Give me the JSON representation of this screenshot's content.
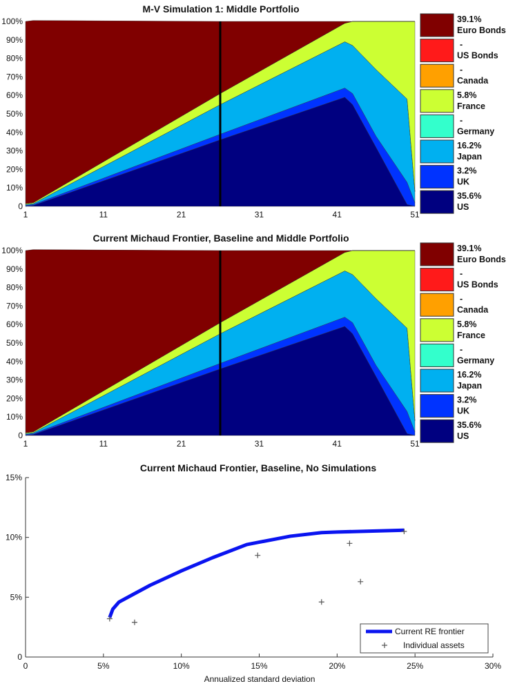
{
  "chart_data": [
    {
      "type": "area",
      "title": "M-V Simulation 1: Middle Portfolio",
      "x": [
        1,
        2,
        26,
        42,
        43,
        46,
        50,
        51
      ],
      "xticks": [
        "1",
        "11",
        "21",
        "31",
        "41",
        "51"
      ],
      "xlim": [
        1,
        51
      ],
      "yticks": [
        "0",
        "10%",
        "20%",
        "30%",
        "40%",
        "50%",
        "60%",
        "70%",
        "80%",
        "90%",
        "100%"
      ],
      "ylim": [
        0,
        100
      ],
      "marker_x": 26,
      "series": [
        {
          "name": "US",
          "value_label": "35.6%",
          "color": "#000080",
          "values": [
            0,
            0.5,
            36,
            59,
            55,
            32,
            1,
            0
          ]
        },
        {
          "name": "UK",
          "value_label": "3.2%",
          "color": "#0033ff",
          "values": [
            0.5,
            0.5,
            3,
            5,
            6,
            6,
            12,
            2
          ]
        },
        {
          "name": "Japan",
          "value_label": "16.2%",
          "color": "#00b0f0",
          "values": [
            0.5,
            0.5,
            16,
            25,
            26,
            36,
            45,
            6
          ]
        },
        {
          "name": "Germany",
          "value_label": "-",
          "color": "#33ffcc",
          "values": [
            0,
            0,
            0,
            0,
            0,
            0,
            0,
            0
          ]
        },
        {
          "name": "France",
          "value_label": "5.8%",
          "color": "#ccff33",
          "values": [
            0.5,
            0.5,
            6,
            10,
            13,
            26,
            42,
            92
          ]
        },
        {
          "name": "Canada",
          "value_label": "-",
          "color": "#ffa000",
          "values": [
            0,
            0,
            0,
            0,
            0,
            0,
            0,
            0
          ]
        },
        {
          "name": "US Bonds",
          "value_label": "-",
          "color": "#ff1a1a",
          "values": [
            0,
            0,
            0,
            0,
            0,
            0,
            0,
            0
          ]
        },
        {
          "name": "Euro Bonds",
          "value_label": "39.1%",
          "color": "#800000",
          "values": [
            98.5,
            98.5,
            39,
            1,
            0,
            0,
            0,
            0
          ]
        }
      ]
    },
    {
      "type": "area",
      "title": "Current Michaud Frontier, Baseline and Middle Portfolio",
      "x": [
        1,
        2,
        26,
        42,
        43,
        46,
        50,
        51
      ],
      "xticks": [
        "1",
        "11",
        "21",
        "31",
        "41",
        "51"
      ],
      "xlim": [
        1,
        51
      ],
      "yticks": [
        "0",
        "10%",
        "20%",
        "30%",
        "40%",
        "50%",
        "60%",
        "70%",
        "80%",
        "90%",
        "100%"
      ],
      "ylim": [
        0,
        100
      ],
      "marker_x": 26,
      "series": [
        {
          "name": "US",
          "value_label": "35.6%",
          "color": "#000080",
          "values": [
            0,
            0.5,
            36,
            59,
            55,
            32,
            1,
            0
          ]
        },
        {
          "name": "UK",
          "value_label": "3.2%",
          "color": "#0033ff",
          "values": [
            0.5,
            0.5,
            3,
            5,
            6,
            6,
            12,
            2
          ]
        },
        {
          "name": "Japan",
          "value_label": "16.2%",
          "color": "#00b0f0",
          "values": [
            0.5,
            0.5,
            16,
            25,
            26,
            36,
            45,
            6
          ]
        },
        {
          "name": "Germany",
          "value_label": "-",
          "color": "#33ffcc",
          "values": [
            0,
            0,
            0,
            0,
            0,
            0,
            0,
            0
          ]
        },
        {
          "name": "France",
          "value_label": "5.8%",
          "color": "#ccff33",
          "values": [
            0.5,
            0.5,
            6,
            10,
            13,
            26,
            42,
            92
          ]
        },
        {
          "name": "Canada",
          "value_label": "-",
          "color": "#ffa000",
          "values": [
            0,
            0,
            0,
            0,
            0,
            0,
            0,
            0
          ]
        },
        {
          "name": "US Bonds",
          "value_label": "-",
          "color": "#ff1a1a",
          "values": [
            0,
            0,
            0,
            0,
            0,
            0,
            0,
            0
          ]
        },
        {
          "name": "Euro Bonds",
          "value_label": "39.1%",
          "color": "#800000",
          "values": [
            98.5,
            98.5,
            39,
            1,
            0,
            0,
            0,
            0
          ]
        }
      ]
    },
    {
      "type": "line",
      "title": "Current Michaud Frontier, Baseline, No Simulations",
      "xlabel": "Annualized standard deviation",
      "ylabel": "",
      "xlim": [
        0,
        30
      ],
      "ylim": [
        0,
        15
      ],
      "xticks": [
        {
          "v": 0,
          "label": "0"
        },
        {
          "v": 5,
          "label": "5%"
        },
        {
          "v": 10,
          "label": "10%"
        },
        {
          "v": 15,
          "label": "15%"
        },
        {
          "v": 20,
          "label": "20%"
        },
        {
          "v": 25,
          "label": "25%"
        },
        {
          "v": 30,
          "label": "30%"
        }
      ],
      "yticks": [
        {
          "v": 0,
          "label": "0"
        },
        {
          "v": 5,
          "label": "5%"
        },
        {
          "v": 10,
          "label": "10%"
        },
        {
          "v": 15,
          "label": "15%"
        }
      ],
      "legend_position": "bottom-right",
      "series": [
        {
          "name": "Current RE frontier",
          "color": "#0a14f0",
          "style": "line",
          "x": [
            5.4,
            5.6,
            6,
            7,
            8,
            10,
            12,
            14.2,
            15,
            17,
            19,
            20,
            24.3
          ],
          "y": [
            3.3,
            4.0,
            4.6,
            5.3,
            6.0,
            7.2,
            8.3,
            9.4,
            9.6,
            10.1,
            10.4,
            10.45,
            10.6
          ]
        },
        {
          "name": "Individual assets",
          "color": "#555555",
          "style": "plus",
          "x": [
            5.4,
            7.0,
            14.9,
            19.0,
            20.8,
            21.5,
            24.3
          ],
          "y": [
            3.2,
            2.9,
            8.5,
            4.6,
            9.5,
            6.3,
            10.5
          ]
        }
      ]
    }
  ]
}
